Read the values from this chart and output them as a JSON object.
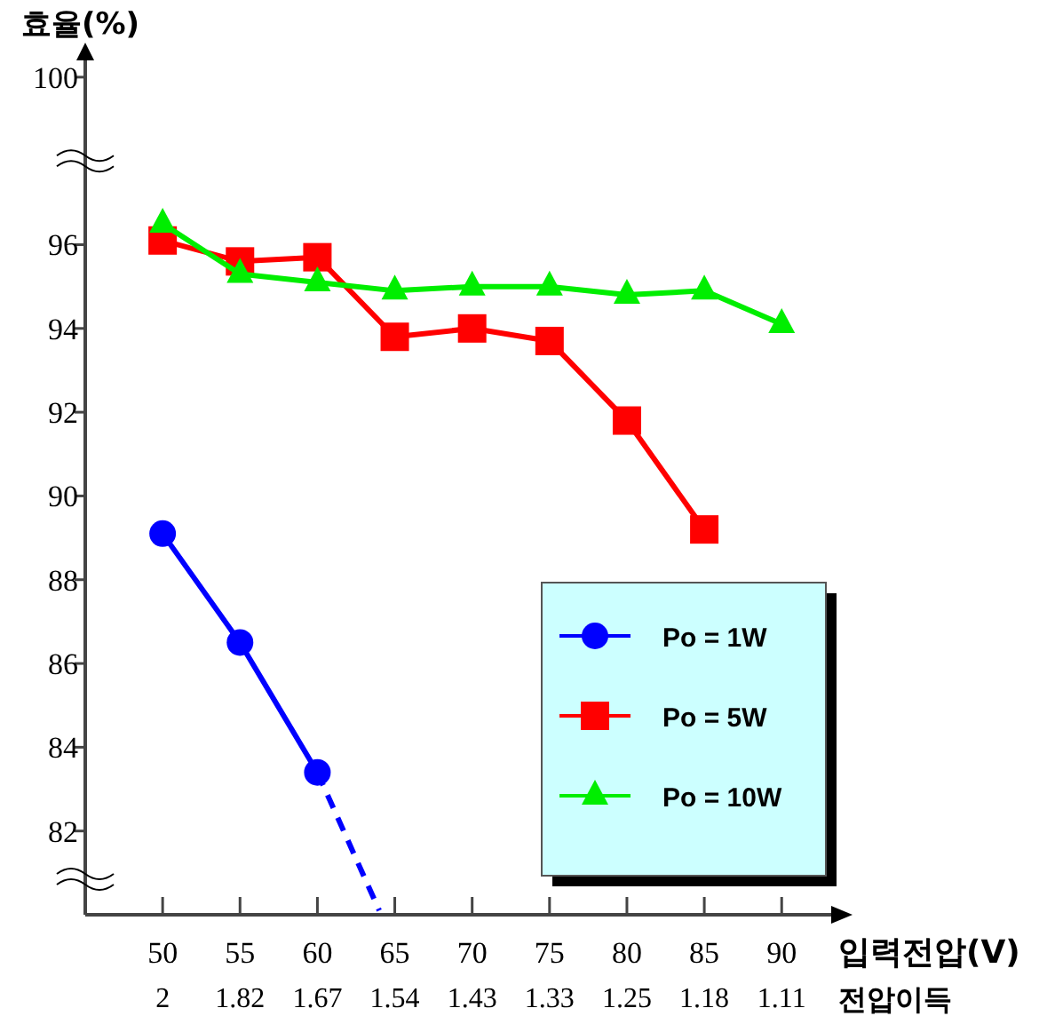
{
  "chart_data": {
    "type": "line",
    "xlabel": "입력전압(V)",
    "ylabel": "효율(%)",
    "x2label": "전압이득",
    "xlim": [
      45,
      93.2
    ],
    "xticks": [
      50,
      55,
      60,
      65,
      70,
      75,
      80,
      85,
      90
    ],
    "annotations": [
      "2",
      "1.82",
      "1.67",
      "1.54",
      "1.43",
      "1.33",
      "1.25",
      "1.18",
      "1.11"
    ],
    "ylim": [
      80,
      100.4
    ],
    "yticks": [
      82,
      84,
      86,
      88,
      90,
      92,
      94,
      96,
      100
    ],
    "grid": false,
    "legend": "right",
    "series": [
      {
        "name": "Po = 1W",
        "color": "#0000ff",
        "marker": "circle",
        "x": [
          50,
          55,
          60
        ],
        "values": [
          89.1,
          86.5,
          83.4
        ]
      },
      {
        "color": "#0000ff",
        "marker": "none",
        "line_style": "dashed",
        "x": [
          60,
          64
        ],
        "values": [
          83.4,
          80.1
        ]
      },
      {
        "name": "Po = 5W",
        "color": "#ff0000",
        "marker": "square",
        "x": [
          50,
          55,
          60,
          65,
          70,
          75,
          80,
          85
        ],
        "values": [
          96.1,
          95.6,
          95.7,
          93.8,
          94.0,
          93.7,
          91.8,
          89.2
        ]
      },
      {
        "name": "Po = 10W",
        "color": "#00ee00",
        "marker": "triangle",
        "x": [
          50,
          55,
          60,
          65,
          70,
          75,
          80,
          85,
          90
        ],
        "values": [
          96.5,
          95.3,
          95.1,
          94.9,
          95.0,
          95.0,
          94.8,
          94.9,
          94.1
        ]
      }
    ]
  }
}
